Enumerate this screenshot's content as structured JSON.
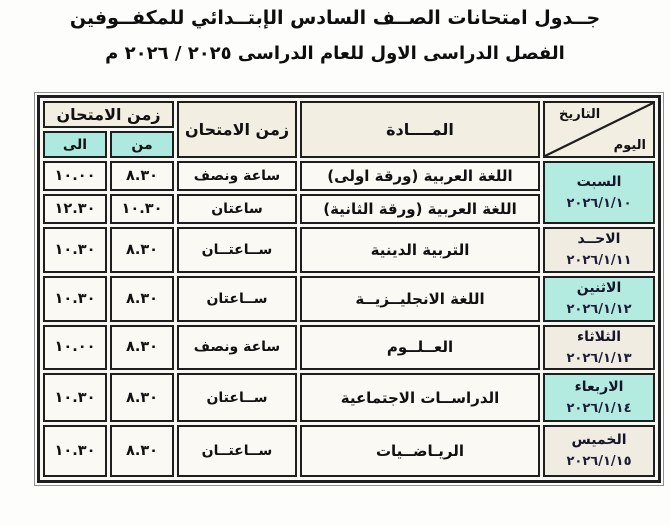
{
  "title": {
    "line1": "جــدول امتحانات الصــف السادس الإبتــدائي للمكفــوفين",
    "line2": "الفصل الدراسى الاول للعام الدراسى  ٢٠٢٥ / ٢٠٢٦ م"
  },
  "table": {
    "header": {
      "corner_top": "التاريخ",
      "corner_bottom": "اليوم",
      "subject": "المــــادة",
      "duration": "زمن الامتحان",
      "time_group": "زمن الامتحان",
      "time_from": "من",
      "time_to": "الى"
    },
    "rows": [
      {
        "day": {
          "name": "السبت",
          "date": "٢٠٢٦/١/١٠",
          "tint": true,
          "rowspan": 2
        },
        "subject": "اللغة العربية (ورقة اولى)",
        "duration": "ساعة ونصف",
        "from": "٨.٣٠",
        "to": "١٠.٠٠"
      },
      {
        "subject": "اللغة العربية (ورقة الثانية)",
        "duration": "ساعتان",
        "from": "١٠.٣٠",
        "to": "١٢.٣٠"
      },
      {
        "day": {
          "name": "الاحــد",
          "date": "٢٠٢٦/١/١١",
          "tint": false
        },
        "subject": "التربية الدينية",
        "duration": "ســاعتــان",
        "from": "٨.٣٠",
        "to": "١٠.٣٠"
      },
      {
        "day": {
          "name": "الاثنين",
          "date": "٢٠٢٦/١/١٢",
          "tint": true
        },
        "subject": "اللغة الانجليــزيــة",
        "duration": "ســاعتان",
        "from": "٨.٣٠",
        "to": "١٠.٣٠"
      },
      {
        "day": {
          "name": "الثلاثاء",
          "date": "٢٠٢٦/١/١٣",
          "tint": false
        },
        "subject": "العــلــوم",
        "duration": "ساعة ونصف",
        "from": "٨.٣٠",
        "to": "١٠.٠٠"
      },
      {
        "day": {
          "name": "الاربعاء",
          "date": "٢٠٢٦/١/١٤",
          "tint": true
        },
        "subject": "الدراســات الاجتماعية",
        "duration": "ســاعتان",
        "from": "٨.٣٠",
        "to": "١٠.٣٠"
      },
      {
        "day": {
          "name": "الخميس",
          "date": "٢٠٢٦/١/١٥",
          "tint": false
        },
        "subject": "الريـاضــيات",
        "duration": "ســاعتــان",
        "from": "٨.٣٠",
        "to": "١٠.٣٠"
      }
    ]
  },
  "colors": {
    "border": "#1e1e1e",
    "header_bg": "#f2eee2",
    "subheader_bg": "#aee9e0",
    "cell_bg": "#fbf9f3",
    "day_tint": "#b4ebe1",
    "day_plain": "#f1ece1",
    "date_text": "#1c1c38",
    "text": "#111111"
  }
}
